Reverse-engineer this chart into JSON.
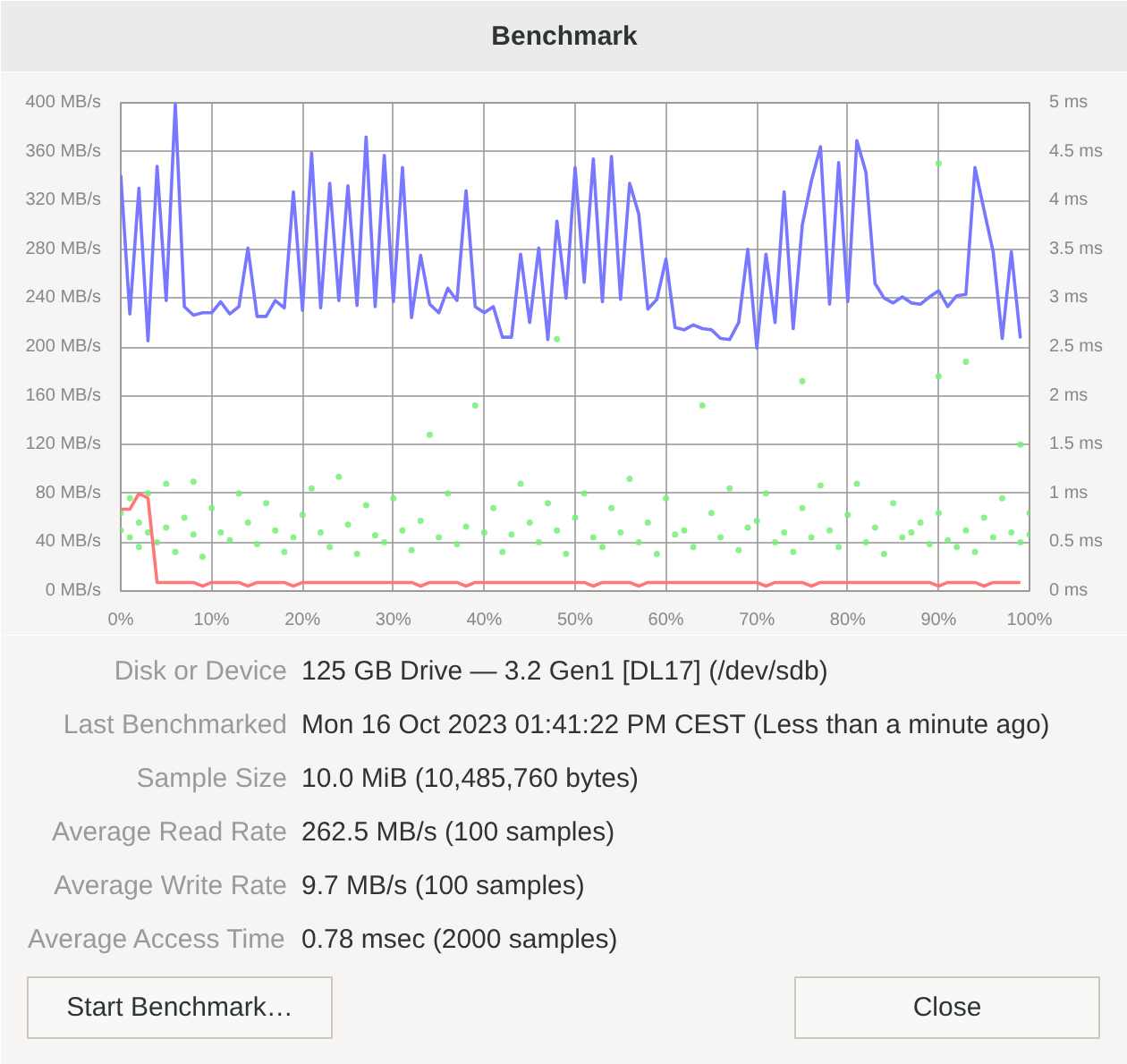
{
  "chart_data": {
    "type": "line",
    "title": "Benchmark",
    "xlim": [
      0,
      100
    ],
    "xticks": [
      {
        "value": 0,
        "label": "0%"
      },
      {
        "value": 10,
        "label": "10%"
      },
      {
        "value": 20,
        "label": "20%"
      },
      {
        "value": 30,
        "label": "30%"
      },
      {
        "value": 40,
        "label": "40%"
      },
      {
        "value": 50,
        "label": "50%"
      },
      {
        "value": 60,
        "label": "60%"
      },
      {
        "value": 70,
        "label": "70%"
      },
      {
        "value": 80,
        "label": "80%"
      },
      {
        "value": 90,
        "label": "90%"
      },
      {
        "value": 100,
        "label": "100%"
      }
    ],
    "ylim": [
      0,
      400
    ],
    "yticks": [
      {
        "value": 0,
        "label": "0 MB/s"
      },
      {
        "value": 40,
        "label": "40 MB/s"
      },
      {
        "value": 80,
        "label": "80 MB/s"
      },
      {
        "value": 120,
        "label": "120 MB/s"
      },
      {
        "value": 160,
        "label": "160 MB/s"
      },
      {
        "value": 200,
        "label": "200 MB/s"
      },
      {
        "value": 240,
        "label": "240 MB/s"
      },
      {
        "value": 280,
        "label": "280 MB/s"
      },
      {
        "value": 320,
        "label": "320 MB/s"
      },
      {
        "value": 360,
        "label": "360 MB/s"
      },
      {
        "value": 400,
        "label": "400 MB/s"
      }
    ],
    "y2lim": [
      0,
      5
    ],
    "y2ticks": [
      {
        "value": 0,
        "label": "0 ms"
      },
      {
        "value": 0.5,
        "label": "0.5 ms"
      },
      {
        "value": 1,
        "label": "1 ms"
      },
      {
        "value": 1.5,
        "label": "1.5 ms"
      },
      {
        "value": 2,
        "label": "2 ms"
      },
      {
        "value": 2.5,
        "label": "2.5 ms"
      },
      {
        "value": 3,
        "label": "3 ms"
      },
      {
        "value": 3.5,
        "label": "3.5 ms"
      },
      {
        "value": 4,
        "label": "4 ms"
      },
      {
        "value": 4.5,
        "label": "4.5 ms"
      },
      {
        "value": 5,
        "label": "5 ms"
      }
    ],
    "grid": true,
    "series": [
      {
        "type": "scatter",
        "axis": "y2",
        "color": "#77ee77",
        "x": [
          0,
          0,
          1,
          1,
          2,
          2,
          3,
          3,
          4,
          5,
          5,
          6,
          7,
          8,
          8,
          9,
          10,
          11,
          12,
          13,
          14,
          15,
          16,
          17,
          18,
          19,
          20,
          21,
          22,
          23,
          24,
          25,
          26,
          27,
          28,
          29,
          30,
          31,
          32,
          33,
          34,
          35,
          36,
          37,
          38,
          39,
          40,
          41,
          42,
          43,
          44,
          45,
          46,
          47,
          48,
          48,
          49,
          50,
          51,
          52,
          53,
          54,
          55,
          56,
          57,
          58,
          59,
          60,
          61,
          62,
          63,
          64,
          65,
          66,
          67,
          68,
          69,
          70,
          71,
          72,
          73,
          74,
          75,
          75,
          76,
          77,
          78,
          79,
          80,
          81,
          82,
          83,
          84,
          85,
          86,
          87,
          88,
          89,
          90,
          90,
          90,
          91,
          92,
          93,
          93,
          94,
          95,
          96,
          97,
          98,
          99,
          99,
          100,
          100
        ],
        "values": [
          0.62,
          0.8,
          0.55,
          0.95,
          0.7,
          0.45,
          1.0,
          0.6,
          0.5,
          1.1,
          0.65,
          0.4,
          0.75,
          1.12,
          0.58,
          0.35,
          0.85,
          0.6,
          0.52,
          1.0,
          0.7,
          0.48,
          0.9,
          0.62,
          0.4,
          0.55,
          0.78,
          1.05,
          0.6,
          0.45,
          1.17,
          0.68,
          0.38,
          0.88,
          0.57,
          0.5,
          0.95,
          0.62,
          0.42,
          0.72,
          1.6,
          0.55,
          1.0,
          0.48,
          0.66,
          1.9,
          0.6,
          0.85,
          0.4,
          0.58,
          1.1,
          0.7,
          0.5,
          0.9,
          2.58,
          0.62,
          0.38,
          0.75,
          1.0,
          0.55,
          0.45,
          0.85,
          0.6,
          1.15,
          0.5,
          0.7,
          0.38,
          0.95,
          0.58,
          0.62,
          0.45,
          1.9,
          0.8,
          0.55,
          1.05,
          0.42,
          0.65,
          0.72,
          1.0,
          0.5,
          0.6,
          0.4,
          2.15,
          0.85,
          0.55,
          1.08,
          0.62,
          0.45,
          0.78,
          1.1,
          0.5,
          0.65,
          0.38,
          0.9,
          0.55,
          0.6,
          0.7,
          0.48,
          4.38,
          2.2,
          0.8,
          0.52,
          0.45,
          2.35,
          0.62,
          0.4,
          0.75,
          0.55,
          0.95,
          0.6,
          1.5,
          0.5,
          0.58,
          0.8
        ]
      },
      {
        "type": "line",
        "color": "#7777ff",
        "x": [
          0,
          1,
          2,
          3,
          4,
          5,
          6,
          7,
          8,
          9,
          10,
          11,
          12,
          13,
          14,
          15,
          16,
          17,
          18,
          19,
          20,
          21,
          22,
          23,
          24,
          25,
          26,
          27,
          28,
          29,
          30,
          31,
          32,
          33,
          34,
          35,
          36,
          37,
          38,
          39,
          40,
          41,
          42,
          43,
          44,
          45,
          46,
          47,
          48,
          49,
          50,
          51,
          52,
          53,
          54,
          55,
          56,
          57,
          58,
          59,
          60,
          61,
          62,
          63,
          64,
          65,
          66,
          67,
          68,
          69,
          70,
          71,
          72,
          73,
          74,
          75,
          76,
          77,
          78,
          79,
          80,
          81,
          82,
          83,
          84,
          85,
          86,
          87,
          88,
          89,
          90,
          91,
          92,
          93,
          94,
          95,
          96,
          97,
          98,
          99
        ],
        "values": [
          341,
          227,
          330,
          205,
          348,
          238,
          399,
          233,
          226,
          228,
          228,
          237,
          227,
          233,
          281,
          225,
          225,
          238,
          232,
          327,
          230,
          359,
          232,
          334,
          238,
          332,
          234,
          372,
          233,
          357,
          237,
          347,
          224,
          275,
          235,
          228,
          248,
          238,
          328,
          233,
          228,
          233,
          208,
          208,
          276,
          220,
          281,
          206,
          303,
          240,
          347,
          253,
          354,
          237,
          356,
          239,
          334,
          309,
          231,
          239,
          272,
          216,
          214,
          218,
          215,
          214,
          207,
          206,
          220,
          280,
          199,
          276,
          220,
          327,
          215,
          300,
          336,
          364,
          235,
          351,
          237,
          369,
          343,
          252,
          240,
          236,
          241,
          236,
          235,
          241,
          246,
          233,
          242,
          243,
          347,
          312,
          278,
          207,
          278,
          207
        ]
      },
      {
        "type": "line",
        "color": "#ff7777",
        "x": [
          0,
          1,
          2,
          3,
          4,
          5,
          6,
          7,
          8,
          9,
          10,
          11,
          12,
          13,
          14,
          15,
          16,
          17,
          18,
          19,
          20,
          21,
          22,
          23,
          24,
          25,
          26,
          27,
          28,
          29,
          30,
          31,
          32,
          33,
          34,
          35,
          36,
          37,
          38,
          39,
          40,
          41,
          42,
          43,
          44,
          45,
          46,
          47,
          48,
          49,
          50,
          51,
          52,
          53,
          54,
          55,
          56,
          57,
          58,
          59,
          60,
          61,
          62,
          63,
          64,
          65,
          66,
          67,
          68,
          69,
          70,
          71,
          72,
          73,
          74,
          75,
          76,
          77,
          78,
          79,
          80,
          81,
          82,
          83,
          84,
          85,
          86,
          87,
          88,
          89,
          90,
          91,
          92,
          93,
          94,
          95,
          96,
          97,
          98,
          99
        ],
        "values": [
          67,
          67,
          80,
          76,
          7,
          7,
          7,
          7,
          7,
          4,
          7,
          7,
          7,
          7,
          4,
          7,
          7,
          7,
          7,
          4,
          7,
          7,
          7,
          7,
          7,
          7,
          7,
          7,
          7,
          7,
          7,
          7,
          7,
          4,
          7,
          7,
          7,
          7,
          4,
          7,
          7,
          7,
          7,
          7,
          7,
          7,
          7,
          7,
          7,
          7,
          7,
          7,
          4,
          7,
          7,
          7,
          7,
          4,
          7,
          7,
          7,
          7,
          7,
          7,
          7,
          7,
          7,
          7,
          7,
          7,
          7,
          4,
          7,
          7,
          7,
          7,
          4,
          7,
          7,
          7,
          7,
          7,
          7,
          7,
          7,
          7,
          7,
          7,
          7,
          7,
          4,
          7,
          7,
          7,
          7,
          4,
          7,
          7,
          7,
          7
        ]
      }
    ],
    "annotations": [
      "Disk or Device",
      "125 GB Drive — 3.2 Gen1 [DL17] (/dev/sdb)",
      "Last Benchmarked",
      "Mon 16 Oct 2023 01:41:22 PM CEST (Less than a minute ago)",
      "Sample Size",
      "10.0 MiB (10,485,760 bytes)",
      "Average Read Rate",
      "262.5 MB/s (100 samples)",
      "Average Write Rate",
      "9.7 MB/s (100 samples)",
      "Average Access Time",
      "0.78 msec (2000 samples)",
      "Start Benchmark…",
      "Close"
    ]
  }
}
